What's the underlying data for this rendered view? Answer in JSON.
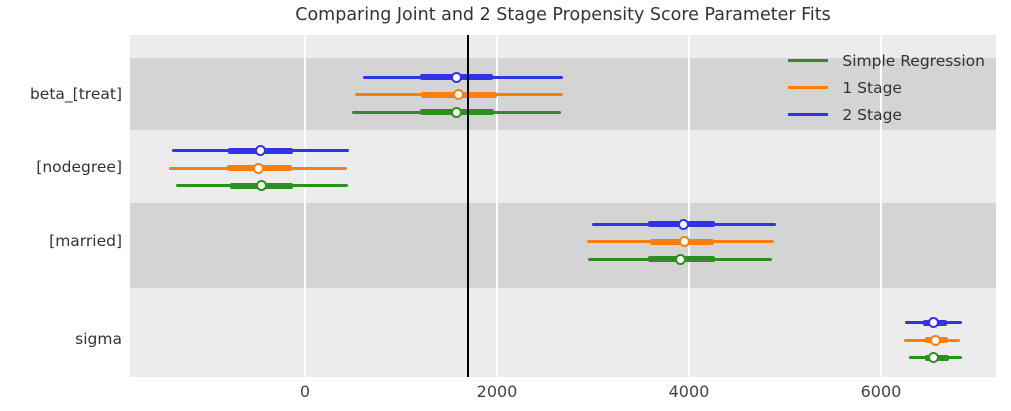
{
  "chart_data": {
    "type": "forest_interval",
    "title": "Comparing Joint and 2 Stage Propensity Score Parameter Fits",
    "rows": [
      "beta_[treat]",
      "[nodegree]",
      "[married]",
      "sigma"
    ],
    "series": [
      {
        "name": "Simple Regression",
        "color": "#2e8f21",
        "intervals": [
          {
            "lo": 490,
            "q1": 1200,
            "median": 1580,
            "q3": 1970,
            "hi": 2670
          },
          {
            "lo": -1345,
            "q1": -780,
            "median": -450,
            "q3": -125,
            "hi": 450
          },
          {
            "lo": 2950,
            "q1": 3575,
            "median": 3915,
            "q3": 4270,
            "hi": 4865
          },
          {
            "lo": 6290,
            "q1": 6460,
            "median": 6550,
            "q3": 6710,
            "hi": 6845
          }
        ]
      },
      {
        "name": "1 Stage",
        "color": "#f9800e",
        "intervals": [
          {
            "lo": 520,
            "q1": 1210,
            "median": 1600,
            "q3": 2000,
            "hi": 2690
          },
          {
            "lo": -1415,
            "q1": -815,
            "median": -480,
            "q3": -135,
            "hi": 440
          },
          {
            "lo": 2940,
            "q1": 3595,
            "median": 3950,
            "q3": 4260,
            "hi": 4885
          },
          {
            "lo": 6240,
            "q1": 6460,
            "median": 6565,
            "q3": 6700,
            "hi": 6825
          }
        ]
      },
      {
        "name": "2 Stage",
        "color": "#3232e6",
        "intervals": [
          {
            "lo": 600,
            "q1": 1200,
            "median": 1580,
            "q3": 1960,
            "hi": 2690
          },
          {
            "lo": -1385,
            "q1": -800,
            "median": -460,
            "q3": -125,
            "hi": 460
          },
          {
            "lo": 2990,
            "q1": 3575,
            "median": 3940,
            "q3": 4270,
            "hi": 4905
          },
          {
            "lo": 6250,
            "q1": 6440,
            "median": 6550,
            "q3": 6690,
            "hi": 6845
          }
        ]
      }
    ],
    "x_ticks": [
      0,
      2000,
      4000,
      6000
    ],
    "xlim": [
      -1823,
      7198
    ],
    "reference_line_x": 1700,
    "legend_position": "upper right",
    "legend_entries": [
      "Simple Regression",
      "1 Stage",
      "2 Stage"
    ],
    "grid": "white vertical gridlines on shaded background",
    "style": {
      "plot_bg": "#ececec",
      "band_color": "#d4d4d4",
      "grid_color": "#ffffff",
      "reference_line_color": "#000000",
      "marker_fill": "#ffffff",
      "text_color": "#333333"
    }
  }
}
